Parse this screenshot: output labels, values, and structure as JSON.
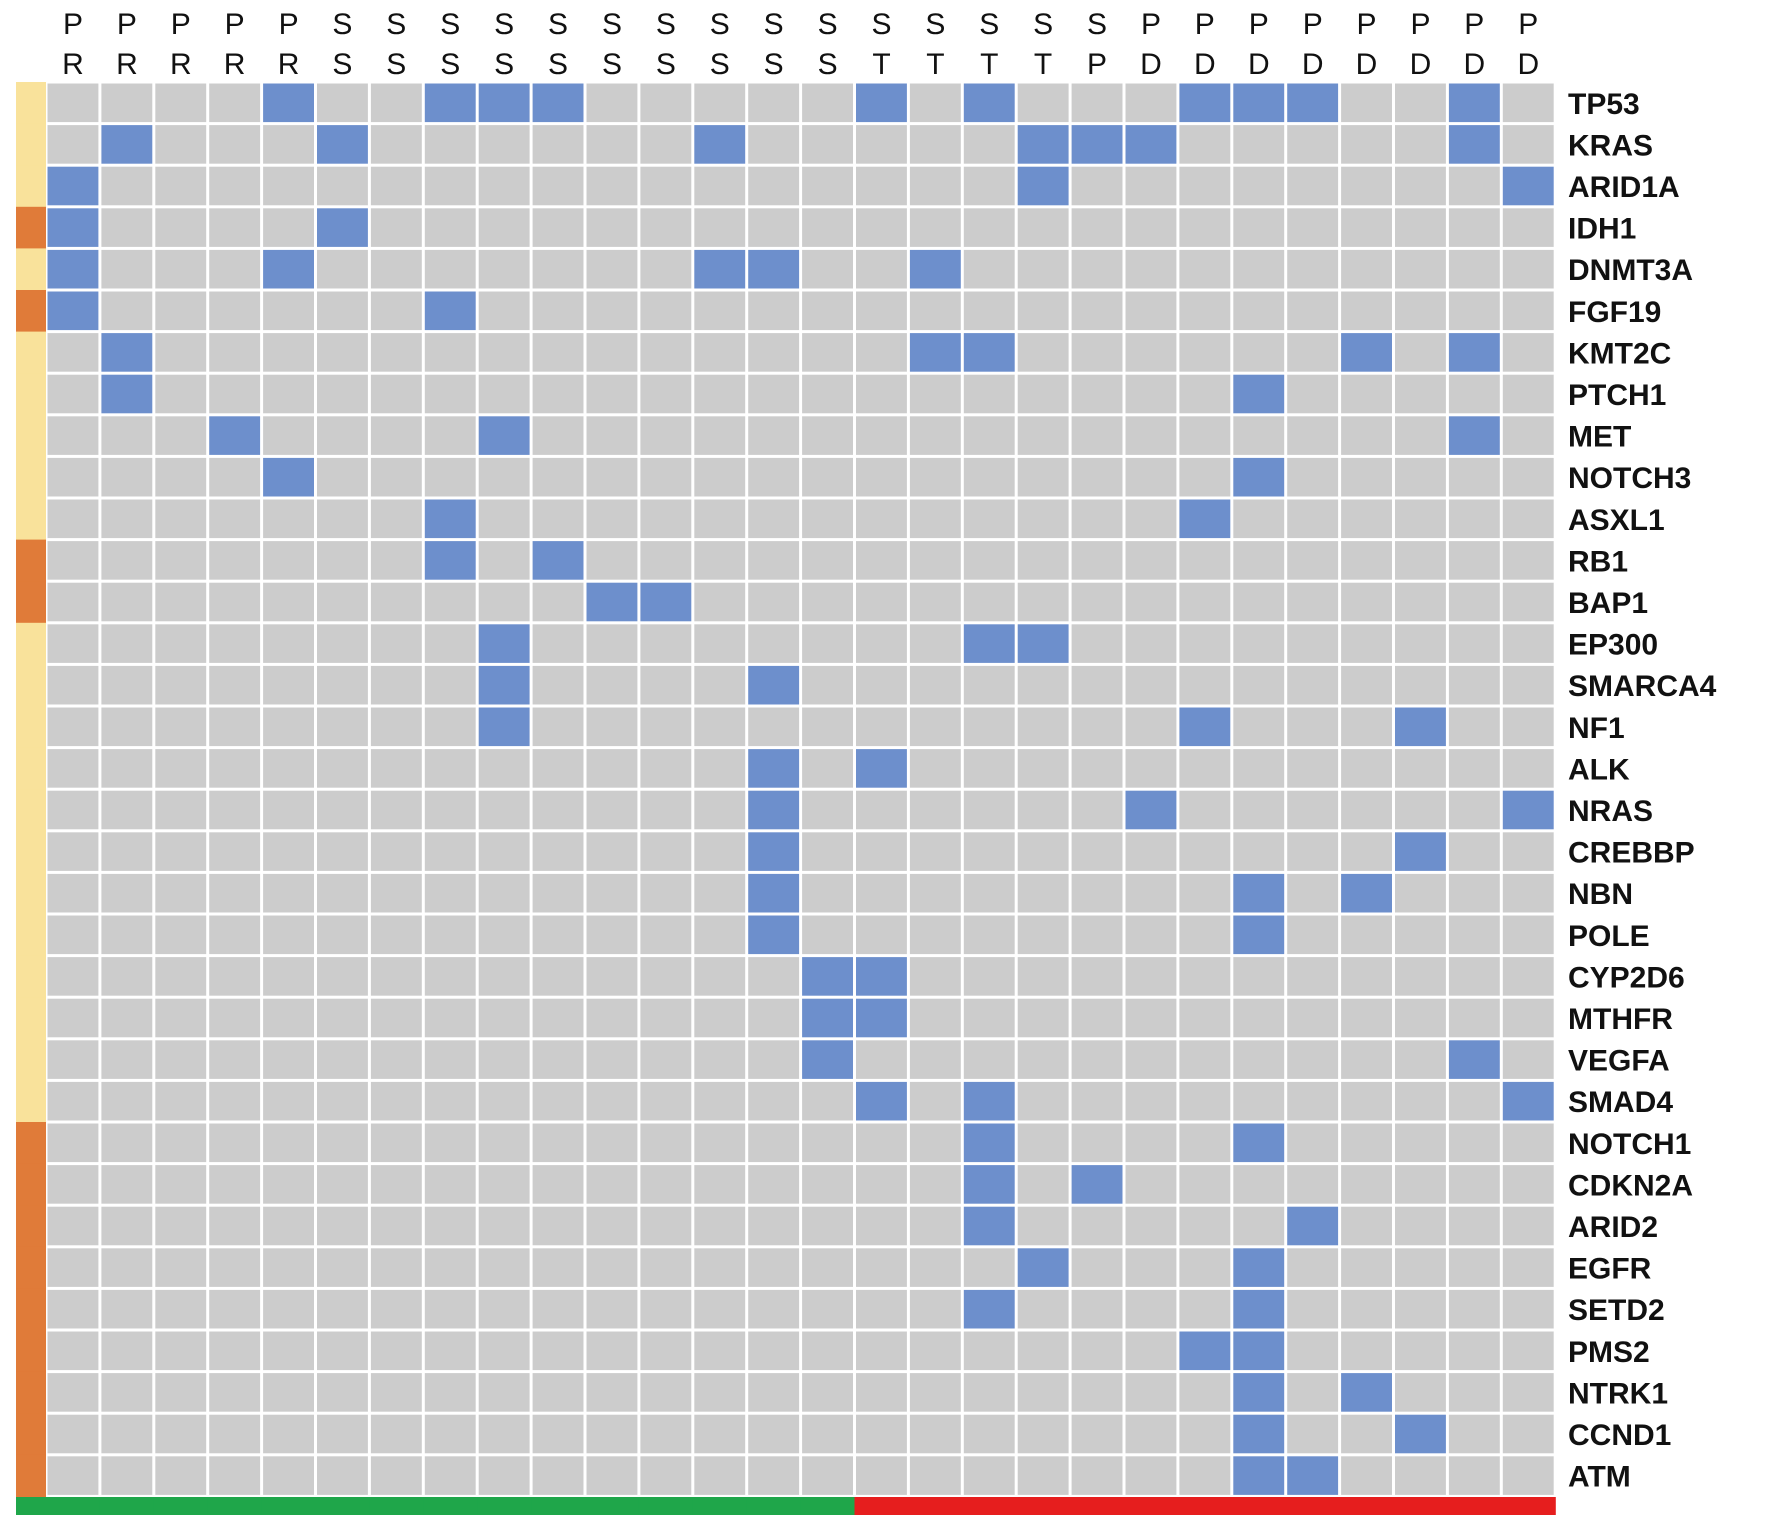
{
  "chart_data": {
    "type": "heatmap",
    "title": "",
    "columns_row1": [
      "P",
      "P",
      "P",
      "P",
      "P",
      "S",
      "S",
      "S",
      "S",
      "S",
      "S",
      "S",
      "S",
      "S",
      "S",
      "S",
      "S",
      "S",
      "S",
      "S",
      "P",
      "P",
      "P",
      "P",
      "P",
      "P",
      "P",
      "P"
    ],
    "columns_row2": [
      "R",
      "R",
      "R",
      "R",
      "R",
      "S",
      "S",
      "S",
      "S",
      "S",
      "S",
      "S",
      "S",
      "S",
      "S",
      "T",
      "T",
      "T",
      "T",
      "P",
      "D",
      "D",
      "D",
      "D",
      "D",
      "D",
      "D",
      "D"
    ],
    "genes": [
      "TP53",
      "KRAS",
      "ARID1A",
      "IDH1",
      "DNMT3A",
      "FGF19",
      "KMT2C",
      "PTCH1",
      "MET",
      "NOTCH3",
      "ASXL1",
      "RB1",
      "BAP1",
      "EP300",
      "SMARCA4",
      "NF1",
      "ALK",
      "NRAS",
      "CREBBP",
      "NBN",
      "POLE",
      "CYP2D6",
      "MTHFR",
      "VEGFA",
      "SMAD4",
      "NOTCH1",
      "CDKN2A",
      "ARID2",
      "EGFR",
      "SETD2",
      "PMS2",
      "NTRK1",
      "CCND1",
      "ATM"
    ],
    "gene_group": [
      "light",
      "light",
      "light",
      "dark",
      "light",
      "dark",
      "light",
      "light",
      "light",
      "light",
      "light",
      "dark",
      "dark",
      "light",
      "light",
      "light",
      "light",
      "light",
      "light",
      "light",
      "light",
      "light",
      "light",
      "light",
      "light",
      "dark",
      "dark",
      "dark",
      "dark",
      "dark",
      "dark",
      "dark",
      "dark",
      "dark"
    ],
    "column_group": [
      "green",
      "green",
      "green",
      "green",
      "green",
      "green",
      "green",
      "green",
      "green",
      "green",
      "green",
      "green",
      "green",
      "green",
      "green",
      "red",
      "red",
      "red",
      "red",
      "red",
      "red",
      "red",
      "red",
      "red",
      "red",
      "red",
      "red",
      "red"
    ],
    "values": [
      [
        0,
        0,
        0,
        0,
        1,
        0,
        0,
        1,
        1,
        1,
        0,
        0,
        0,
        0,
        0,
        1,
        0,
        1,
        0,
        0,
        0,
        1,
        1,
        1,
        0,
        0,
        1,
        0
      ],
      [
        0,
        1,
        0,
        0,
        0,
        1,
        0,
        0,
        0,
        0,
        0,
        0,
        1,
        0,
        0,
        0,
        0,
        0,
        1,
        1,
        1,
        0,
        0,
        0,
        0,
        0,
        1,
        0
      ],
      [
        1,
        0,
        0,
        0,
        0,
        0,
        0,
        0,
        0,
        0,
        0,
        0,
        0,
        0,
        0,
        0,
        0,
        0,
        1,
        0,
        0,
        0,
        0,
        0,
        0,
        0,
        0,
        1
      ],
      [
        1,
        0,
        0,
        0,
        0,
        1,
        0,
        0,
        0,
        0,
        0,
        0,
        0,
        0,
        0,
        0,
        0,
        0,
        0,
        0,
        0,
        0,
        0,
        0,
        0,
        0,
        0,
        0
      ],
      [
        1,
        0,
        0,
        0,
        1,
        0,
        0,
        0,
        0,
        0,
        0,
        0,
        1,
        1,
        0,
        0,
        1,
        0,
        0,
        0,
        0,
        0,
        0,
        0,
        0,
        0,
        0,
        0
      ],
      [
        1,
        0,
        0,
        0,
        0,
        0,
        0,
        1,
        0,
        0,
        0,
        0,
        0,
        0,
        0,
        0,
        0,
        0,
        0,
        0,
        0,
        0,
        0,
        0,
        0,
        0,
        0,
        0
      ],
      [
        0,
        1,
        0,
        0,
        0,
        0,
        0,
        0,
        0,
        0,
        0,
        0,
        0,
        0,
        0,
        0,
        1,
        1,
        0,
        0,
        0,
        0,
        0,
        0,
        1,
        0,
        1,
        0
      ],
      [
        0,
        1,
        0,
        0,
        0,
        0,
        0,
        0,
        0,
        0,
        0,
        0,
        0,
        0,
        0,
        0,
        0,
        0,
        0,
        0,
        0,
        0,
        1,
        0,
        0,
        0,
        0,
        0
      ],
      [
        0,
        0,
        0,
        1,
        0,
        0,
        0,
        0,
        1,
        0,
        0,
        0,
        0,
        0,
        0,
        0,
        0,
        0,
        0,
        0,
        0,
        0,
        0,
        0,
        0,
        0,
        1,
        0
      ],
      [
        0,
        0,
        0,
        0,
        1,
        0,
        0,
        0,
        0,
        0,
        0,
        0,
        0,
        0,
        0,
        0,
        0,
        0,
        0,
        0,
        0,
        0,
        1,
        0,
        0,
        0,
        0,
        0
      ],
      [
        0,
        0,
        0,
        0,
        0,
        0,
        0,
        1,
        0,
        0,
        0,
        0,
        0,
        0,
        0,
        0,
        0,
        0,
        0,
        0,
        0,
        1,
        0,
        0,
        0,
        0,
        0,
        0
      ],
      [
        0,
        0,
        0,
        0,
        0,
        0,
        0,
        1,
        0,
        1,
        0,
        0,
        0,
        0,
        0,
        0,
        0,
        0,
        0,
        0,
        0,
        0,
        0,
        0,
        0,
        0,
        0,
        0
      ],
      [
        0,
        0,
        0,
        0,
        0,
        0,
        0,
        0,
        0,
        0,
        1,
        1,
        0,
        0,
        0,
        0,
        0,
        0,
        0,
        0,
        0,
        0,
        0,
        0,
        0,
        0,
        0,
        0
      ],
      [
        0,
        0,
        0,
        0,
        0,
        0,
        0,
        0,
        1,
        0,
        0,
        0,
        0,
        0,
        0,
        0,
        0,
        1,
        1,
        0,
        0,
        0,
        0,
        0,
        0,
        0,
        0,
        0
      ],
      [
        0,
        0,
        0,
        0,
        0,
        0,
        0,
        0,
        1,
        0,
        0,
        0,
        0,
        1,
        0,
        0,
        0,
        0,
        0,
        0,
        0,
        0,
        0,
        0,
        0,
        0,
        0,
        0
      ],
      [
        0,
        0,
        0,
        0,
        0,
        0,
        0,
        0,
        1,
        0,
        0,
        0,
        0,
        0,
        0,
        0,
        0,
        0,
        0,
        0,
        0,
        1,
        0,
        0,
        0,
        1,
        0,
        0
      ],
      [
        0,
        0,
        0,
        0,
        0,
        0,
        0,
        0,
        0,
        0,
        0,
        0,
        0,
        1,
        0,
        1,
        0,
        0,
        0,
        0,
        0,
        0,
        0,
        0,
        0,
        0,
        0,
        0
      ],
      [
        0,
        0,
        0,
        0,
        0,
        0,
        0,
        0,
        0,
        0,
        0,
        0,
        0,
        1,
        0,
        0,
        0,
        0,
        0,
        0,
        1,
        0,
        0,
        0,
        0,
        0,
        0,
        1
      ],
      [
        0,
        0,
        0,
        0,
        0,
        0,
        0,
        0,
        0,
        0,
        0,
        0,
        0,
        1,
        0,
        0,
        0,
        0,
        0,
        0,
        0,
        0,
        0,
        0,
        0,
        1,
        0,
        0
      ],
      [
        0,
        0,
        0,
        0,
        0,
        0,
        0,
        0,
        0,
        0,
        0,
        0,
        0,
        1,
        0,
        0,
        0,
        0,
        0,
        0,
        0,
        0,
        1,
        0,
        1,
        0,
        0,
        0
      ],
      [
        0,
        0,
        0,
        0,
        0,
        0,
        0,
        0,
        0,
        0,
        0,
        0,
        0,
        1,
        0,
        0,
        0,
        0,
        0,
        0,
        0,
        0,
        1,
        0,
        0,
        0,
        0,
        0
      ],
      [
        0,
        0,
        0,
        0,
        0,
        0,
        0,
        0,
        0,
        0,
        0,
        0,
        0,
        0,
        1,
        1,
        0,
        0,
        0,
        0,
        0,
        0,
        0,
        0,
        0,
        0,
        0,
        0
      ],
      [
        0,
        0,
        0,
        0,
        0,
        0,
        0,
        0,
        0,
        0,
        0,
        0,
        0,
        0,
        1,
        1,
        0,
        0,
        0,
        0,
        0,
        0,
        0,
        0,
        0,
        0,
        0,
        0
      ],
      [
        0,
        0,
        0,
        0,
        0,
        0,
        0,
        0,
        0,
        0,
        0,
        0,
        0,
        0,
        1,
        0,
        0,
        0,
        0,
        0,
        0,
        0,
        0,
        0,
        0,
        0,
        1,
        0
      ],
      [
        0,
        0,
        0,
        0,
        0,
        0,
        0,
        0,
        0,
        0,
        0,
        0,
        0,
        0,
        0,
        1,
        0,
        1,
        0,
        0,
        0,
        0,
        0,
        0,
        0,
        0,
        0,
        1
      ],
      [
        0,
        0,
        0,
        0,
        0,
        0,
        0,
        0,
        0,
        0,
        0,
        0,
        0,
        0,
        0,
        0,
        0,
        1,
        0,
        0,
        0,
        0,
        1,
        0,
        0,
        0,
        0,
        0
      ],
      [
        0,
        0,
        0,
        0,
        0,
        0,
        0,
        0,
        0,
        0,
        0,
        0,
        0,
        0,
        0,
        0,
        0,
        1,
        0,
        1,
        0,
        0,
        0,
        0,
        0,
        0,
        0,
        0
      ],
      [
        0,
        0,
        0,
        0,
        0,
        0,
        0,
        0,
        0,
        0,
        0,
        0,
        0,
        0,
        0,
        0,
        0,
        1,
        0,
        0,
        0,
        0,
        0,
        1,
        0,
        0,
        0,
        0
      ],
      [
        0,
        0,
        0,
        0,
        0,
        0,
        0,
        0,
        0,
        0,
        0,
        0,
        0,
        0,
        0,
        0,
        0,
        0,
        1,
        0,
        0,
        0,
        1,
        0,
        0,
        0,
        0,
        0
      ],
      [
        0,
        0,
        0,
        0,
        0,
        0,
        0,
        0,
        0,
        0,
        0,
        0,
        0,
        0,
        0,
        0,
        0,
        1,
        0,
        0,
        0,
        0,
        1,
        0,
        0,
        0,
        0,
        0
      ],
      [
        0,
        0,
        0,
        0,
        0,
        0,
        0,
        0,
        0,
        0,
        0,
        0,
        0,
        0,
        0,
        0,
        0,
        0,
        0,
        0,
        0,
        1,
        1,
        0,
        0,
        0,
        0,
        0
      ],
      [
        0,
        0,
        0,
        0,
        0,
        0,
        0,
        0,
        0,
        0,
        0,
        0,
        0,
        0,
        0,
        0,
        0,
        0,
        0,
        0,
        0,
        0,
        1,
        0,
        1,
        0,
        0,
        0
      ],
      [
        0,
        0,
        0,
        0,
        0,
        0,
        0,
        0,
        0,
        0,
        0,
        0,
        0,
        0,
        0,
        0,
        0,
        0,
        0,
        0,
        0,
        0,
        1,
        0,
        0,
        1,
        0,
        0
      ],
      [
        0,
        0,
        0,
        0,
        0,
        0,
        0,
        0,
        0,
        0,
        0,
        0,
        0,
        0,
        0,
        0,
        0,
        0,
        0,
        0,
        0,
        0,
        1,
        1,
        0,
        0,
        0,
        0
      ]
    ],
    "grid": true,
    "legend": "none"
  },
  "colors": {
    "cell_on": "#6d8fcc",
    "cell_off": "#cccccc",
    "grid_line": "#ffffff",
    "group_light": "#f9e29b",
    "group_dark": "#e07b39",
    "group_green": "#1fa64a",
    "group_red": "#e61e1e"
  }
}
